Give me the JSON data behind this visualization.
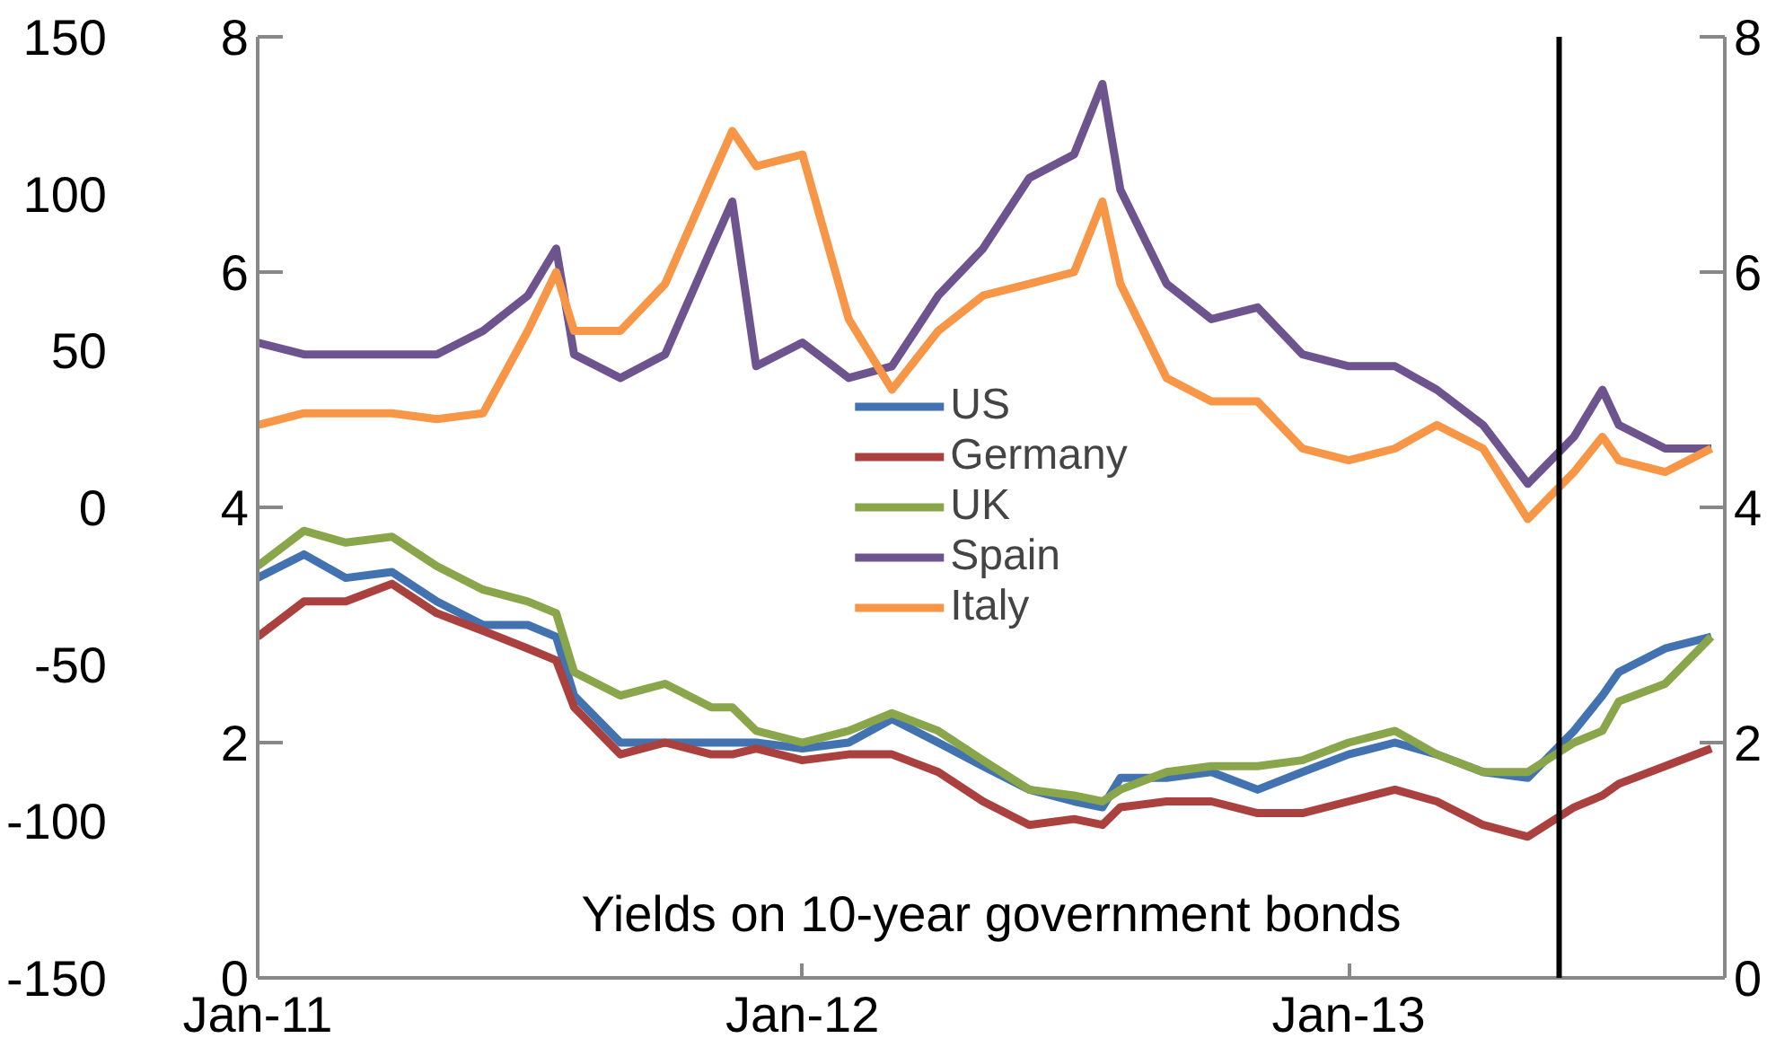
{
  "chart_data": {
    "type": "line",
    "annotations": [
      "Yields on 10-year government bonds"
    ],
    "x": [
      "2011-01-01",
      "2011-02-01",
      "2011-03-01",
      "2011-04-01",
      "2011-05-01",
      "2011-06-01",
      "2011-07-01",
      "2011-07-20",
      "2011-08-01",
      "2011-09-01",
      "2011-10-01",
      "2011-11-01",
      "2011-11-15",
      "2011-12-01",
      "2012-01-01",
      "2012-02-01",
      "2012-03-01",
      "2012-04-01",
      "2012-05-01",
      "2012-06-01",
      "2012-07-01",
      "2012-07-20",
      "2012-08-01",
      "2012-09-01",
      "2012-10-01",
      "2012-11-01",
      "2012-12-01",
      "2013-01-01",
      "2013-02-01",
      "2013-03-01",
      "2013-04-01",
      "2013-05-01",
      "2013-06-01",
      "2013-06-20",
      "2013-07-01",
      "2013-08-01",
      "2013-09-01"
    ],
    "series": [
      {
        "name": "US",
        "color": "#4272b0",
        "values": [
          3.4,
          3.6,
          3.4,
          3.45,
          3.2,
          3.0,
          3.0,
          2.9,
          2.4,
          2.0,
          2.0,
          2.0,
          2.0,
          2.0,
          1.95,
          2.0,
          2.2,
          2.0,
          1.8,
          1.6,
          1.5,
          1.45,
          1.7,
          1.7,
          1.75,
          1.6,
          1.75,
          1.9,
          2.0,
          1.9,
          1.75,
          1.7,
          2.1,
          2.4,
          2.6,
          2.8,
          2.9
        ]
      },
      {
        "name": "Germany",
        "color": "#aa413f",
        "values": [
          2.9,
          3.2,
          3.2,
          3.35,
          3.1,
          2.95,
          2.8,
          2.7,
          2.3,
          1.9,
          2.0,
          1.9,
          1.9,
          1.95,
          1.85,
          1.9,
          1.9,
          1.75,
          1.5,
          1.3,
          1.35,
          1.3,
          1.45,
          1.5,
          1.5,
          1.4,
          1.4,
          1.5,
          1.6,
          1.5,
          1.3,
          1.2,
          1.45,
          1.55,
          1.65,
          1.8,
          1.95
        ]
      },
      {
        "name": "UK",
        "color": "#89a64b",
        "values": [
          3.5,
          3.8,
          3.7,
          3.75,
          3.5,
          3.3,
          3.2,
          3.1,
          2.6,
          2.4,
          2.5,
          2.3,
          2.3,
          2.1,
          2.0,
          2.1,
          2.25,
          2.1,
          1.85,
          1.6,
          1.55,
          1.5,
          1.6,
          1.75,
          1.8,
          1.8,
          1.85,
          2.0,
          2.1,
          1.9,
          1.75,
          1.75,
          2.0,
          2.1,
          2.35,
          2.5,
          2.9
        ]
      },
      {
        "name": "Spain",
        "color": "#6d548f",
        "values": [
          5.4,
          5.3,
          5.3,
          5.3,
          5.3,
          5.5,
          5.8,
          6.2,
          5.3,
          5.1,
          5.3,
          6.2,
          6.6,
          5.2,
          5.4,
          5.1,
          5.2,
          5.8,
          6.2,
          6.8,
          7.0,
          7.6,
          6.7,
          5.9,
          5.6,
          5.7,
          5.3,
          5.2,
          5.2,
          5.0,
          4.7,
          4.2,
          4.6,
          5.0,
          4.7,
          4.5,
          4.5
        ]
      },
      {
        "name": "Italy",
        "color": "#f79646",
        "values": [
          4.7,
          4.8,
          4.8,
          4.8,
          4.75,
          4.8,
          5.5,
          6.0,
          5.5,
          5.5,
          5.9,
          6.8,
          7.2,
          6.9,
          7.0,
          5.6,
          5.0,
          5.5,
          5.8,
          5.9,
          6.0,
          6.6,
          5.9,
          5.1,
          4.9,
          4.9,
          4.5,
          4.4,
          4.5,
          4.7,
          4.5,
          3.9,
          4.3,
          4.6,
          4.4,
          4.3,
          4.5
        ]
      }
    ],
    "xlim": [
      "2011-01-01",
      "2013-09-10"
    ],
    "xticks": [
      {
        "value": "2011-01-01",
        "label": "Jan-11"
      },
      {
        "value": "2012-01-01",
        "label": "Jan-12"
      },
      {
        "value": "2013-01-01",
        "label": "Jan-13"
      }
    ],
    "ylim": [
      0,
      8
    ],
    "yticks": [
      0,
      2,
      4,
      6,
      8
    ],
    "y2lim": [
      0,
      8
    ],
    "y2ticks": [
      0,
      2,
      4,
      6,
      8
    ],
    "y3lim": [
      -150,
      150
    ],
    "y3ticks": [
      -150,
      -100,
      -50,
      0,
      50,
      100,
      150
    ],
    "ref_lines": [
      {
        "axis": "x",
        "value": "2013-05-22",
        "label": null,
        "color": "#000000"
      }
    ],
    "legend": "center",
    "grid": false,
    "marker": "none",
    "line_style": "solid"
  }
}
